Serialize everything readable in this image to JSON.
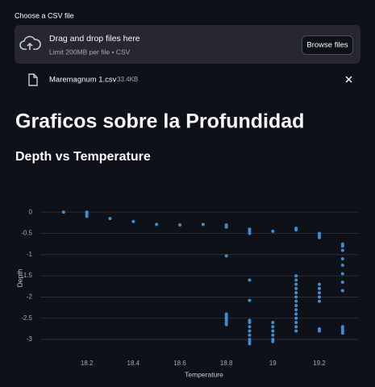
{
  "upload": {
    "label": "Choose a CSV file",
    "drop_text": "Drag and drop files here",
    "limit_text": "Limit 200MB per file • CSV",
    "button": "Browse files"
  },
  "file": {
    "name": "Maremagnum 1.csv",
    "size": "33.4KB"
  },
  "heading": "Graficos sobre la Profundidad",
  "chart_data": {
    "type": "scatter",
    "title": "Depth vs Temperature",
    "x_label": "Temperature",
    "y_label": "Depth",
    "x": [
      18.1,
      18.2,
      18.2,
      18.2,
      18.3,
      18.4,
      18.5,
      18.6,
      18.7,
      18.8,
      18.8,
      18.8,
      18.8,
      18.8,
      18.8,
      18.8,
      18.8,
      18.8,
      18.9,
      18.9,
      18.9,
      18.9,
      18.9,
      18.9,
      18.9,
      18.9,
      18.9,
      18.9,
      18.9,
      18.9,
      18.9,
      19.0,
      19.0,
      19.0,
      19.0,
      19.0,
      19.0,
      19.0,
      19.1,
      19.1,
      19.1,
      19.1,
      19.1,
      19.1,
      19.1,
      19.1,
      19.1,
      19.1,
      19.1,
      19.1,
      19.1,
      19.1,
      19.1,
      19.1,
      19.2,
      19.2,
      19.2,
      19.2,
      19.2,
      19.2,
      19.2,
      19.2,
      19.2,
      19.2,
      19.3,
      19.3,
      19.3,
      19.3,
      19.3,
      19.3,
      19.3,
      19.3,
      19.3,
      19.3,
      19.3,
      19.3
    ],
    "values": [
      0,
      0,
      -0.05,
      -0.1,
      -0.15,
      -0.22,
      -0.29,
      -0.3,
      -0.29,
      -0.3,
      -0.35,
      -1.03,
      -2.4,
      -2.45,
      -2.5,
      -2.55,
      -2.6,
      -2.65,
      -0.4,
      -0.45,
      -0.5,
      -1.6,
      -2.08,
      -2.55,
      -2.6,
      -2.7,
      -2.8,
      -2.9,
      -3.0,
      -3.05,
      -3.1,
      -0.45,
      -2.6,
      -2.7,
      -2.8,
      -2.9,
      -3.0,
      -3.05,
      -0.38,
      -0.42,
      -1.5,
      -1.6,
      -1.7,
      -1.8,
      -1.9,
      -2.0,
      -2.1,
      -2.2,
      -2.3,
      -2.4,
      -2.5,
      -2.6,
      -2.7,
      -2.8,
      -0.5,
      -0.55,
      -0.6,
      -1.7,
      -1.8,
      -1.9,
      -2.0,
      -2.1,
      -2.75,
      -2.8,
      -0.75,
      -0.8,
      -0.9,
      -1.1,
      -1.25,
      -1.45,
      -1.65,
      -1.85,
      -2.7,
      -2.75,
      -2.8,
      -2.85
    ],
    "color": "#3d8fd1",
    "xlim": [
      18.0,
      19.37
    ],
    "xticks": [
      18.2,
      18.4,
      18.6,
      18.8,
      19,
      19.2
    ],
    "ylim": [
      -3.17,
      0.25
    ],
    "yticks": [
      0,
      -0.5,
      -1,
      -1.5,
      -2,
      -2.5,
      -3
    ],
    "grid": true
  }
}
